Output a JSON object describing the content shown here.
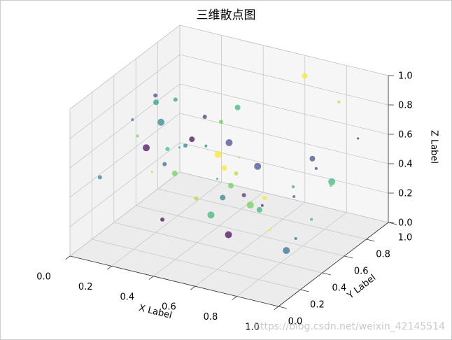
{
  "chart_data": {
    "type": "scatter3d",
    "title": "三维散点图",
    "xlabel": "X Label",
    "ylabel": "Y Label",
    "zlabel": "Z Label",
    "xlim": [
      0,
      1
    ],
    "ylim": [
      0,
      1
    ],
    "zlim": [
      0,
      1
    ],
    "xticks": [
      {
        "value": 0,
        "label": "0.0"
      },
      0.2,
      0.4,
      0.6,
      0.8,
      {
        "value": 1,
        "label": "1.0"
      }
    ],
    "yticks": [
      {
        "value": 0,
        "label": "0.0"
      },
      0.2,
      0.4,
      0.6,
      0.8,
      {
        "value": 1,
        "label": "1.0"
      }
    ],
    "zticks": [
      {
        "value": 0,
        "label": "0.0"
      },
      0.2,
      0.4,
      0.6,
      0.8,
      {
        "value": 1,
        "label": "1.0"
      }
    ],
    "grid": true,
    "x": [
      0.12,
      0.85,
      0.33,
      0.56,
      0.91,
      0.07,
      0.44,
      0.68,
      0.22,
      0.79,
      0.15,
      0.62,
      0.38,
      0.95,
      0.51,
      0.03,
      0.72,
      0.29,
      0.88,
      0.47,
      0.18,
      0.64,
      0.81,
      0.35,
      0.09,
      0.58,
      0.26,
      0.93,
      0.41,
      0.75,
      0.54,
      0.11,
      0.67,
      0.31,
      0.86,
      0.45,
      0.2,
      0.77,
      0.6,
      0.02,
      0.97,
      0.39,
      0.7,
      0.24,
      0.83,
      0.49,
      0.14,
      0.66,
      0.36,
      0.89
    ],
    "y": [
      0.55,
      0.21,
      0.9,
      0.38,
      0.72,
      0.14,
      0.63,
      0.05,
      0.81,
      0.47,
      0.33,
      0.96,
      0.12,
      0.58,
      0.27,
      0.69,
      0.84,
      0.41,
      0.08,
      0.75,
      0.52,
      0.19,
      0.66,
      0.03,
      0.88,
      0.44,
      0.29,
      0.61,
      0.93,
      0.16,
      0.7,
      0.36,
      0.5,
      0.24,
      0.99,
      0.1,
      0.77,
      0.57,
      0.31,
      0.85,
      0.4,
      0.65,
      0.02,
      0.92,
      0.48,
      0.18,
      0.73,
      0.26,
      0.6,
      0.35
    ],
    "z": [
      0.82,
      0.35,
      0.61,
      0.12,
      0.95,
      0.48,
      0.27,
      0.73,
      0.56,
      0.04,
      0.68,
      0.89,
      0.31,
      0.5,
      0.77,
      0.19,
      0.43,
      0.93,
      0.6,
      0.08,
      0.39,
      0.71,
      0.15,
      0.84,
      0.28,
      0.62,
      0.97,
      0.45,
      0.22,
      0.58,
      0.1,
      0.76,
      0.34,
      0.88,
      0.53,
      0.66,
      0.02,
      0.41,
      0.8,
      0.25,
      0.7,
      0.16,
      0.92,
      0.47,
      0.13,
      0.86,
      0.37,
      0.64,
      0.06,
      0.51
    ],
    "sizes": [
      3,
      2,
      4,
      5,
      2,
      3,
      4,
      1.5,
      3,
      5,
      2,
      4,
      3,
      5,
      2,
      1.5,
      4,
      3,
      2,
      5,
      3,
      4,
      2,
      5,
      3,
      1.5,
      4,
      2,
      5,
      3,
      4,
      2,
      3,
      5,
      1.5,
      4,
      3,
      2,
      5,
      3,
      2,
      4,
      5,
      3,
      2,
      4,
      1.5,
      3,
      5,
      2
    ],
    "colors": [
      "#3e4989",
      "#fde725",
      "#35b779",
      "#440154",
      "#b5de2b",
      "#26828e",
      "#6ece58",
      "#1f9e89",
      "#482878",
      "#31688e",
      "#6ece58",
      "#fde725",
      "#440154",
      "#35b779",
      "#26828e",
      "#b5de2b",
      "#3e4989",
      "#1f9e89",
      "#482878",
      "#6ece58",
      "#31688e",
      "#fde725",
      "#35b779",
      "#440154",
      "#26828e",
      "#b5de2b",
      "#1f9e89",
      "#6ece58",
      "#3e4989",
      "#482878",
      "#35b779",
      "#31688e",
      "#fde725",
      "#26828e",
      "#440154",
      "#6ece58",
      "#b5de2b",
      "#1f9e89",
      "#3e4989",
      "#35b779",
      "#482878",
      "#26828e",
      "#fde725",
      "#6ece58",
      "#31688e",
      "#440154",
      "#1f9e89",
      "#b5de2b",
      "#35b779",
      "#3e4989"
    ],
    "watermark": "https://blog.csdn.net/weixin_42145514"
  }
}
